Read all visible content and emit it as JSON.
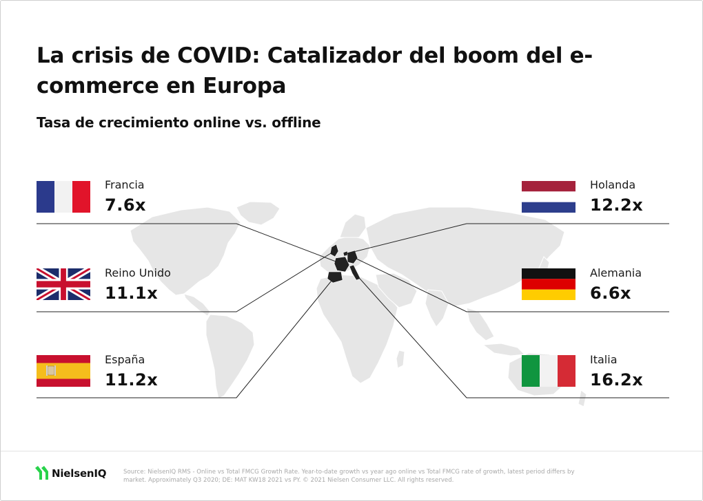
{
  "title": "La crisis de COVID: Catalizador del boom del e-commerce en Europa",
  "subtitle": "Tasa de crecimiento online vs. offline",
  "countries": [
    {
      "name": "Francia",
      "value": "7.6x",
      "flag": "flag-france"
    },
    {
      "name": "Reino Unido",
      "value": "11.1x",
      "flag": "flag-uk"
    },
    {
      "name": "España",
      "value": "11.2x",
      "flag": "flag-spain"
    },
    {
      "name": "Holanda",
      "value": "12.2x",
      "flag": "flag-netherlands"
    },
    {
      "name": "Alemania",
      "value": "6.6x",
      "flag": "flag-germany"
    },
    {
      "name": "Italia",
      "value": "16.2x",
      "flag": "flag-italy"
    }
  ],
  "colors": {
    "accent_green": "#28d24a",
    "france_blue": "#2b3a8c",
    "france_red": "#e1142a",
    "netherlands_red": "#a5223c",
    "netherlands_blue": "#2d3e8c",
    "germany_red": "#dd0000",
    "germany_gold": "#ffcc00",
    "spain_red": "#c8102e",
    "spain_yellow": "#f5bd1c",
    "italy_green": "#10953f",
    "italy_red": "#d52b35",
    "uk_blue": "#1c2d6b",
    "uk_red": "#c8102e",
    "map_land": "#e6e6e6",
    "map_highlight": "#222222"
  },
  "footer": {
    "logo": "NielsenIQ",
    "source": "Source: NielsenIQ RMS - Online vs Total FMCG Growth Rate. Year-to-date growth vs year ago online vs Total FMCG rate of growth, latest period differs by market. Approximately Q3 2020; DE: MAT KW18 2021 vs PY. © 2021 Nielsen Consumer LLC. All rights reserved."
  }
}
